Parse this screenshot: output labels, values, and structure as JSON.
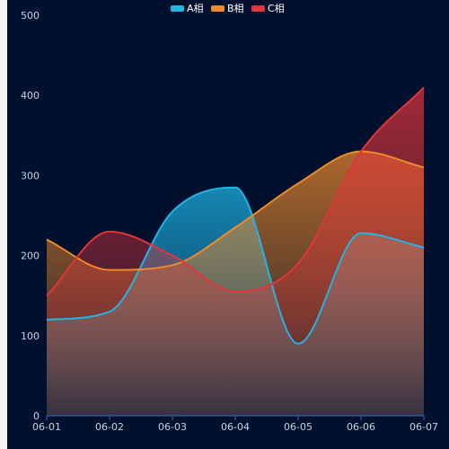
{
  "chart_data": {
    "type": "area",
    "categories": [
      "06-01",
      "06-02",
      "06-03",
      "06-04",
      "06-05",
      "06-06",
      "06-07"
    ],
    "ylim": [
      0,
      500
    ],
    "yticks": [
      0,
      100,
      200,
      300,
      400,
      500
    ],
    "grid": false,
    "legend_position": "top-center",
    "series": [
      {
        "name": "A相",
        "color": "#1fb6e6",
        "values": [
          120,
          130,
          255,
          285,
          90,
          228,
          210
        ]
      },
      {
        "name": "B相",
        "color": "#ef8a2b",
        "values": [
          220,
          182,
          188,
          235,
          290,
          330,
          310
        ]
      },
      {
        "name": "C相",
        "color": "#e0353a",
        "values": [
          150,
          230,
          200,
          155,
          190,
          330,
          410
        ]
      }
    ],
    "colors": {
      "background": "#00102d",
      "axis": "#2f6bd8",
      "tick_text": "#c9d2e3"
    }
  }
}
